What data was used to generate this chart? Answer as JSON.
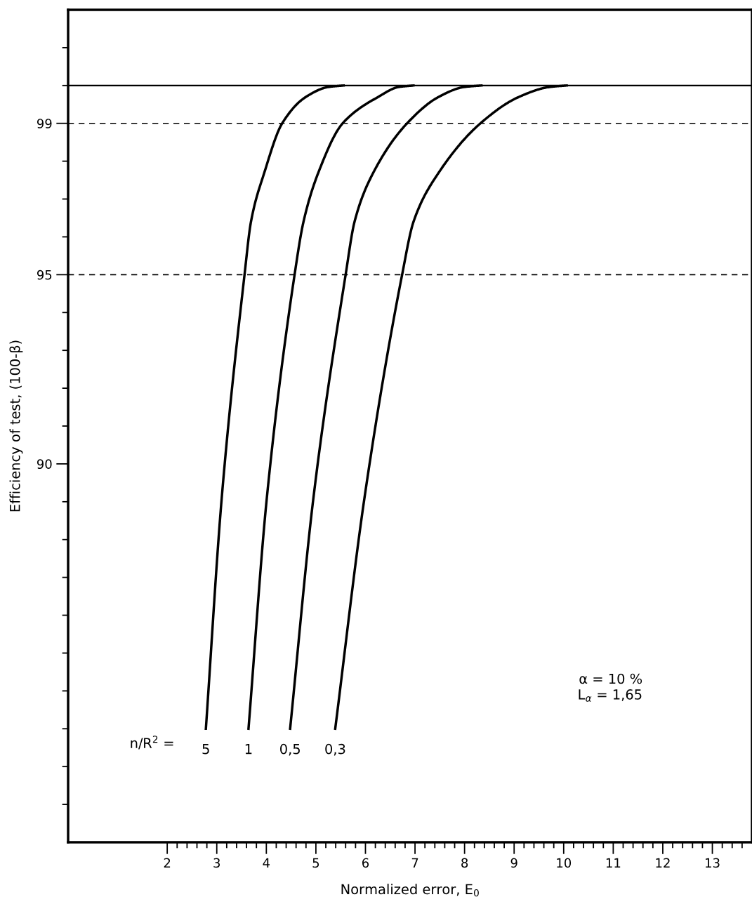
{
  "chart_data": {
    "type": "line",
    "xlabel": "Normalized error, E$_{0}$",
    "ylabel": "Efficiency of test, (100-β)",
    "xlim": [
      0,
      13.8
    ],
    "ylim": [
      80,
      102
    ],
    "xticks": [
      2,
      {
        "value": 2.2,
        "label": null
      },
      {
        "value": 2.4,
        "label": null
      },
      {
        "value": 2.6,
        "label": null
      },
      {
        "value": 2.8,
        "label": null
      },
      3,
      {
        "value": 3.2,
        "label": null
      },
      {
        "value": 3.4,
        "label": null
      },
      {
        "value": 3.6,
        "label": null
      },
      {
        "value": 3.8,
        "label": null
      },
      4,
      {
        "value": 4.2,
        "label": null
      },
      {
        "value": 4.4,
        "label": null
      },
      {
        "value": 4.6,
        "label": null
      },
      {
        "value": 4.8,
        "label": null
      },
      5,
      {
        "value": 5.2,
        "label": null
      },
      {
        "value": 5.4,
        "label": null
      },
      {
        "value": 5.6,
        "label": null
      },
      {
        "value": 5.8,
        "label": null
      },
      6,
      {
        "value": 6.2,
        "label": null
      },
      {
        "value": 6.4,
        "label": null
      },
      {
        "value": 6.6,
        "label": null
      },
      {
        "value": 6.8,
        "label": null
      },
      7,
      {
        "value": 7.2,
        "label": null
      },
      {
        "value": 7.4,
        "label": null
      },
      {
        "value": 7.6,
        "label": null
      },
      {
        "value": 7.8,
        "label": null
      },
      8,
      {
        "value": 8.2,
        "label": null
      },
      {
        "value": 8.4,
        "label": null
      },
      {
        "value": 8.6,
        "label": null
      },
      {
        "value": 8.8,
        "label": null
      },
      9,
      {
        "value": 9.2,
        "label": null
      },
      {
        "value": 9.4,
        "label": null
      },
      {
        "value": 9.6,
        "label": null
      },
      {
        "value": 9.8,
        "label": null
      },
      10,
      {
        "value": 10.2,
        "label": null
      },
      {
        "value": 10.4,
        "label": null
      },
      {
        "value": 10.6,
        "label": null
      },
      {
        "value": 10.8,
        "label": null
      },
      11,
      {
        "value": 11.2,
        "label": null
      },
      {
        "value": 11.4,
        "label": null
      },
      {
        "value": 11.6,
        "label": null
      },
      {
        "value": 11.8,
        "label": null
      },
      12,
      {
        "value": 12.2,
        "label": null
      },
      {
        "value": 12.4,
        "label": null
      },
      {
        "value": 12.6,
        "label": null
      },
      {
        "value": 12.8,
        "label": null
      },
      13,
      {
        "value": 13.2,
        "label": null
      },
      {
        "value": 13.4,
        "label": null
      },
      {
        "value": 13.6,
        "label": null
      }
    ],
    "yticks": [
      {
        "value": 81,
        "label": null
      },
      {
        "value": 82,
        "label": null
      },
      {
        "value": 83,
        "label": null
      },
      {
        "value": 84,
        "label": null
      },
      {
        "value": 85,
        "label": null
      },
      {
        "value": 86,
        "label": null
      },
      {
        "value": 87,
        "label": null
      },
      {
        "value": 88,
        "label": null
      },
      {
        "value": 89,
        "label": null
      },
      90,
      {
        "value": 91,
        "label": null
      },
      {
        "value": 92,
        "label": null
      },
      {
        "value": 93,
        "label": null
      },
      {
        "value": 94,
        "label": null
      },
      95,
      {
        "value": 96,
        "label": null
      },
      {
        "value": 97,
        "label": null
      },
      {
        "value": 98,
        "label": null
      },
      99,
      {
        "value": 100,
        "label": null
      },
      {
        "value": 101,
        "label": null
      }
    ],
    "grid": false,
    "legend": false,
    "marker": "none",
    "line_style": "solid",
    "series": [
      {
        "color": "#000000",
        "x": [
          2.78,
          3.1,
          3.56,
          3.69,
          3.96,
          4.32,
          4.8,
          5.25,
          5.56
        ],
        "values": [
          83,
          89.1,
          95,
          96.4,
          97.7,
          99,
          99.7,
          99.96,
          100
        ]
      },
      {
        "color": "#000000",
        "x": [
          3.64,
          4.01,
          4.57,
          4.75,
          5.05,
          5.54,
          6.26,
          6.67,
          6.97
        ],
        "values": [
          83,
          89.1,
          95,
          96.4,
          97.7,
          99,
          99.7,
          99.96,
          100
        ]
      },
      {
        "color": "#000000",
        "x": [
          4.48,
          4.95,
          5.6,
          5.78,
          6.16,
          6.84,
          7.48,
          7.99,
          8.34
        ],
        "values": [
          83,
          89.1,
          95,
          96.4,
          97.7,
          99,
          99.7,
          99.96,
          100
        ]
      },
      {
        "color": "#000000",
        "x": [
          5.39,
          5.98,
          6.74,
          6.97,
          7.48,
          8.32,
          9.1,
          9.71,
          10.06
        ],
        "values": [
          83,
          89.1,
          95,
          96.4,
          97.7,
          99,
          99.7,
          99.96,
          100
        ]
      }
    ],
    "ref_lines": [
      {
        "axis": "y",
        "value": 100,
        "color": "#000000",
        "line_style": "solid"
      },
      {
        "axis": "y",
        "value": 99,
        "color": "#000000",
        "line_style": "dashed"
      },
      {
        "axis": "y",
        "value": 95,
        "color": "#000000",
        "line_style": "dashed"
      }
    ],
    "annotations": [
      "n/R$^{2}$ =",
      {
        "text": "5",
        "x": 2.78,
        "y": 83
      },
      {
        "text": "1",
        "x": 3.64,
        "y": 83
      },
      {
        "text": "0,5",
        "x": 4.48,
        "y": 83
      },
      {
        "text": "0,3",
        "x": 5.39,
        "y": 83
      },
      "α = 10 %",
      "L$_{α}$ = 1,65"
    ]
  }
}
